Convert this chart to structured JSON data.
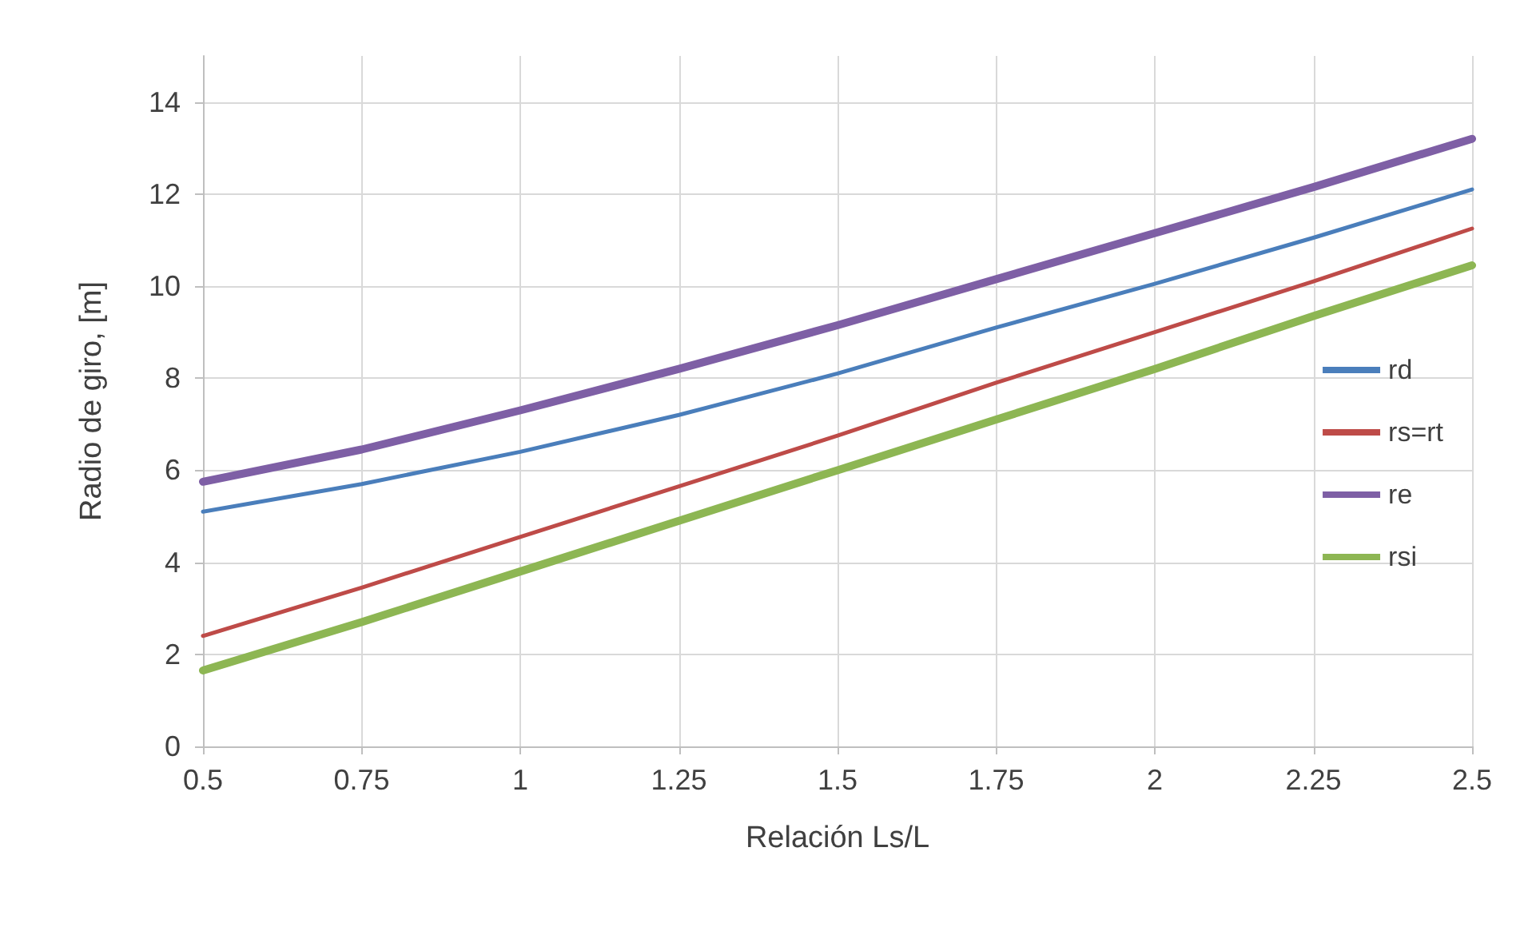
{
  "chart_data": {
    "type": "line",
    "xlabel": "Relación Ls/L",
    "ylabel": "Radio de giro, [m]",
    "x": [
      0.5,
      0.75,
      1,
      1.25,
      1.5,
      1.75,
      2,
      2.25,
      2.5
    ],
    "series": [
      {
        "name": "rd",
        "color": "#4a7ebb",
        "values": [
          5.1,
          5.7,
          6.4,
          7.2,
          8.1,
          9.1,
          10.05,
          11.05,
          12.1
        ]
      },
      {
        "name": "rs=rt",
        "color": "#be4b48",
        "values": [
          2.4,
          3.45,
          4.55,
          5.65,
          6.75,
          7.9,
          9.0,
          10.1,
          11.25
        ]
      },
      {
        "name": "re",
        "color": "#7e5fa5",
        "values": [
          5.75,
          6.45,
          7.3,
          8.2,
          9.15,
          10.15,
          11.15,
          12.15,
          13.2
        ]
      },
      {
        "name": "rsi",
        "color": "#8db653",
        "values": [
          1.65,
          2.7,
          3.8,
          4.9,
          6.0,
          7.1,
          8.2,
          9.35,
          10.45
        ]
      }
    ],
    "xlim": [
      0.5,
      2.5
    ],
    "xticks": [
      0.5,
      0.75,
      1,
      1.25,
      1.5,
      1.75,
      2,
      2.25,
      2.5
    ],
    "ylim": [
      0,
      15
    ],
    "yticks": [
      0,
      2,
      4,
      6,
      8,
      10,
      12,
      14
    ],
    "grid": true,
    "legend": "right",
    "marker": "none",
    "line_style": "solid"
  }
}
